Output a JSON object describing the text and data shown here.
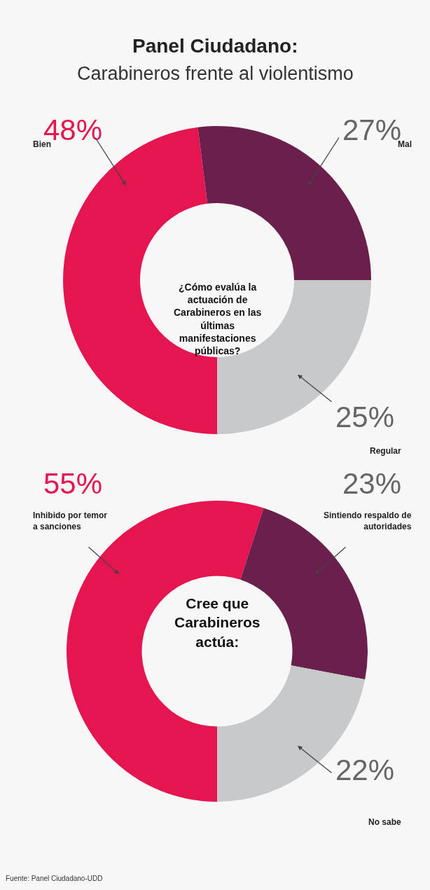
{
  "chart_data": [
    {
      "type": "donut",
      "title": "Panel Ciudadano:",
      "subtitle": "Carabineros frente al violentismo",
      "categories": [
        "Bien",
        "Mal",
        "Regular"
      ],
      "values": [
        48,
        27,
        25
      ],
      "colors": [
        "#e5154f",
        "#6b1f4d",
        "#c8c9cb"
      ],
      "value_labels": [
        "48%",
        "27%",
        "25%"
      ],
      "annotations": [
        "¿Cómo evalúa la\nactuación de\nCarabineros en las\núltimas\nmanifestaciones\npúblicas?"
      ]
    },
    {
      "type": "donut",
      "categories": [
        "Inhibido por temor\na sanciones",
        "Sintiendo respaldo de\nautoridades",
        "No sabe"
      ],
      "values": [
        55,
        23,
        22
      ],
      "colors": [
        "#e5154f",
        "#6b1f4d",
        "#c8c9cb"
      ],
      "value_labels": [
        "55%",
        "23%",
        "22%"
      ],
      "annotations": [
        "Cree que\nCarabineros\nactúa:",
        "Fuente: Panel Ciudadano-UDD"
      ]
    }
  ]
}
